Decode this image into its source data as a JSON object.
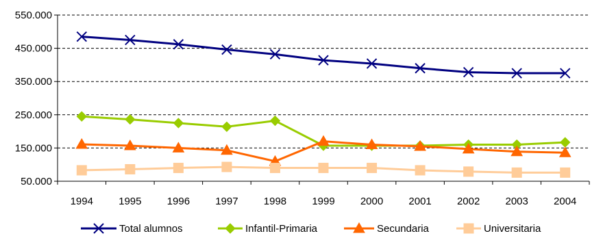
{
  "chart_data": {
    "type": "line",
    "title": "",
    "xlabel": "",
    "ylabel": "",
    "categories": [
      "1994",
      "1995",
      "1996",
      "1997",
      "1998",
      "1999",
      "2000",
      "2001",
      "2002",
      "2003",
      "2004"
    ],
    "ylim": [
      50000,
      550000
    ],
    "y_ticks": [
      50000,
      150000,
      250000,
      350000,
      450000,
      550000
    ],
    "y_tick_labels": [
      "50.000",
      "150.000",
      "250.000",
      "350.000",
      "450.000",
      "550.000"
    ],
    "grid": "horizontal-dashed",
    "legend_position": "bottom",
    "series": [
      {
        "name": "Total alumnos",
        "marker": "x",
        "color": "#000080",
        "values": [
          485000,
          475000,
          462000,
          446000,
          432000,
          414000,
          404000,
          390000,
          378000,
          375000,
          375000
        ]
      },
      {
        "name": "Infantil-Primaria",
        "marker": "diamond",
        "color": "#99CC00",
        "values": [
          245000,
          236000,
          225000,
          214000,
          232000,
          157000,
          157000,
          157000,
          160000,
          160000,
          167000
        ]
      },
      {
        "name": "Secundaria",
        "marker": "triangle",
        "color": "#FF6600",
        "values": [
          161000,
          157000,
          150000,
          143000,
          110000,
          170000,
          160000,
          155000,
          147000,
          139000,
          136000
        ]
      },
      {
        "name": "Universitaria",
        "marker": "square",
        "color": "#FFCC99",
        "values": [
          83000,
          86000,
          90000,
          93000,
          90000,
          90000,
          90000,
          83000,
          79000,
          76000,
          76000
        ]
      }
    ]
  }
}
